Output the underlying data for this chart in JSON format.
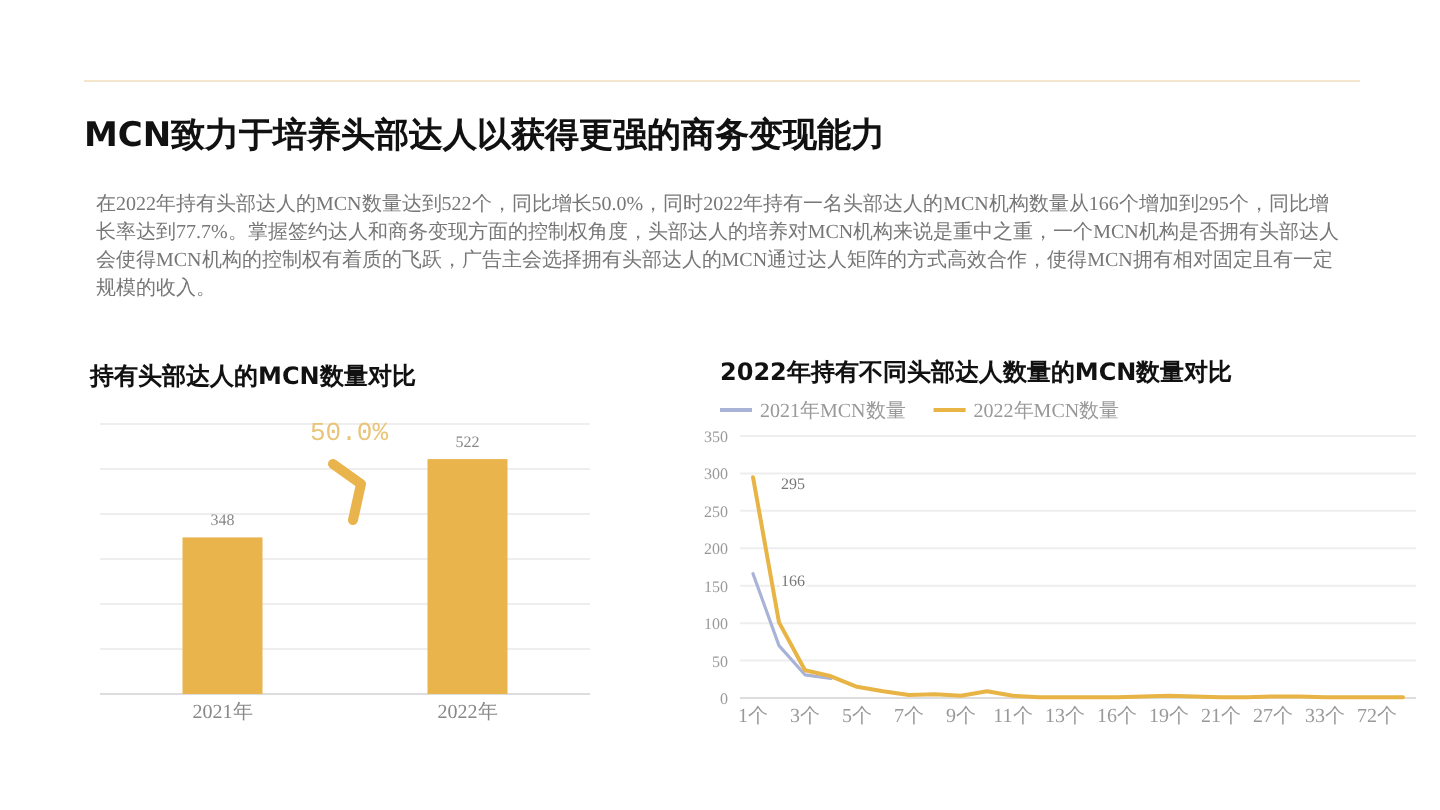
{
  "chart_data": [
    {
      "type": "other",
      "title": "MCN致力于培养头部达人以获得更强的商务变现能力",
      "annotations": [
        "在2022年持有头部达人的MCN数量达到522个，同比增长50.0%，同时2022年持有一名头部达人的MCN机构数量从166个增加到295个，同比增长率达到77.7%。掌握签约达人和商务变现方面的控制权角度，头部达人的培养对MCN机构来说是重中之重，一个MCN机构是否拥有头部达人会使得MCN机构的控制权有着质的飞跃，广告主会选择拥有头部达人的MCN通过达人矩阵的方式高效合作，使得MCN拥有相对固定且有一定规模的收入。"
      ]
    },
    {
      "type": "bar",
      "title": "持有头部达人的MCN数量对比",
      "categories": [
        "2021年",
        "2022年"
      ],
      "values": [
        348,
        522
      ],
      "color": "#e9b44c",
      "data_labels": true,
      "ylim": [
        0,
        600
      ],
      "yticks": [
        {
          "value": 0,
          "label": null
        },
        {
          "value": 100,
          "label": null
        },
        {
          "value": 200,
          "label": null
        },
        {
          "value": 300,
          "label": null
        },
        {
          "value": 400,
          "label": null
        },
        {
          "value": 500,
          "label": null
        },
        {
          "value": 600,
          "label": null
        }
      ],
      "grid": "y",
      "tick_labels": "x",
      "annotations": [
        "50.0%"
      ]
    },
    {
      "type": "line",
      "title": "2022年持有不同头部达人数量的MCN数量对比",
      "categories": [
        "1个",
        null,
        "3个",
        null,
        "5个",
        null,
        "7个",
        null,
        "9个",
        null,
        "11个",
        null,
        "13个",
        null,
        "16个",
        null,
        "19个",
        null,
        "21个",
        null,
        "27个",
        null,
        "33个",
        null,
        "72个",
        null
      ],
      "series": [
        {
          "name": "2021年MCN数量",
          "color": "#a9b3d8",
          "values": [
            166,
            70,
            31,
            26,
            null,
            null,
            null,
            null,
            null,
            null,
            null,
            null,
            null,
            null,
            null,
            null,
            null,
            null,
            null,
            null,
            null,
            null,
            null,
            null,
            null,
            null
          ],
          "value_labels": [
            "166",
            null,
            null,
            null,
            null,
            null,
            null,
            null,
            null,
            null,
            null,
            null,
            null,
            null,
            null,
            null,
            null,
            null,
            null,
            null,
            null,
            null,
            null,
            null,
            null,
            null
          ]
        },
        {
          "name": "2022年MCN数量",
          "color": "#e8b446",
          "values": [
            295,
            101,
            37,
            29,
            15,
            9,
            4,
            5,
            3,
            9,
            3,
            1,
            1,
            1,
            1,
            2,
            3,
            2,
            1,
            1,
            2,
            2,
            1,
            1,
            1,
            1
          ],
          "value_labels": [
            "295",
            null,
            null,
            null,
            null,
            null,
            null,
            null,
            null,
            null,
            null,
            null,
            null,
            null,
            null,
            null,
            null,
            null,
            null,
            null,
            null,
            null,
            null,
            null,
            null,
            null
          ]
        }
      ],
      "ylim": [
        0,
        350
      ],
      "yticks": [
        0,
        50,
        100,
        150,
        200,
        250,
        300,
        350
      ],
      "grid": "y",
      "legend": "top left"
    }
  ]
}
